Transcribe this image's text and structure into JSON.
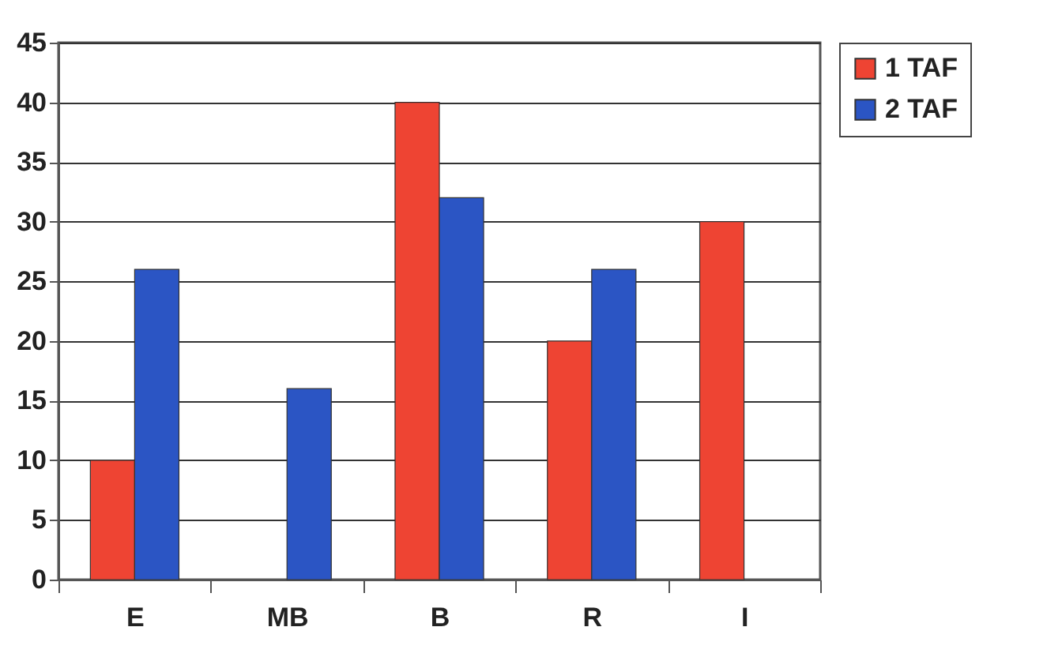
{
  "chart_data": {
    "type": "bar",
    "categories": [
      "E",
      "MB",
      "B",
      "R",
      "I"
    ],
    "series": [
      {
        "name": "1 TAF",
        "color": "#ee4433",
        "values": [
          10,
          null,
          40,
          20,
          30
        ]
      },
      {
        "name": "2 TAF",
        "color": "#2b55c4",
        "values": [
          26,
          16,
          32,
          26,
          null
        ]
      }
    ],
    "ylim": [
      0,
      45
    ],
    "yticks": [
      0,
      5,
      10,
      15,
      20,
      25,
      30,
      35,
      40,
      45
    ],
    "grid": "y",
    "legend": "right"
  }
}
